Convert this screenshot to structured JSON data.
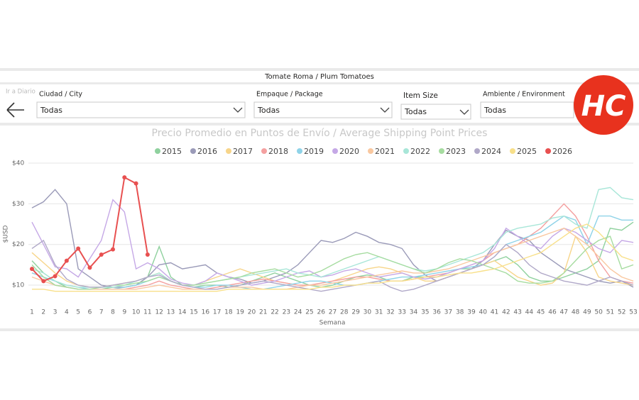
{
  "header": {
    "title": "Tomate Roma / Plum Tomatoes",
    "back_label": "Ir a Diario"
  },
  "filters": [
    {
      "label": "Ciudad / City",
      "value": "Todas"
    },
    {
      "label": "Empaque / Package",
      "value": "Todas"
    },
    {
      "label": "Item Size",
      "value": "Todas"
    },
    {
      "label": "Ambiente / Environment",
      "value": "Todas"
    }
  ],
  "logo": "HC",
  "chart_data": {
    "type": "line",
    "title": "Precio Promedio en Puntos de Envío / Average Shipping Point Prices",
    "y_label": "$USD",
    "x_label": "Semana",
    "categories": [
      1,
      2,
      3,
      4,
      5,
      6,
      7,
      8,
      9,
      10,
      11,
      12,
      13,
      14,
      15,
      16,
      17,
      18,
      19,
      20,
      21,
      22,
      23,
      24,
      25,
      26,
      27,
      28,
      29,
      30,
      31,
      32,
      33,
      34,
      35,
      36,
      37,
      38,
      39,
      40,
      41,
      42,
      43,
      44,
      45,
      46,
      47,
      48,
      49,
      50,
      51,
      52,
      53
    ],
    "ylim": [
      6,
      40
    ],
    "yticks": [
      {
        "value": 10,
        "label": "$10"
      },
      {
        "value": 20,
        "label": "$20"
      },
      {
        "value": 30,
        "label": "$30"
      },
      {
        "value": 40,
        "label": "$40"
      }
    ],
    "grid": true,
    "series": [
      {
        "name": "2015",
        "color": "#8fd19e",
        "values": [
          16,
          13,
          11,
          9.5,
          9,
          9,
          9,
          9.5,
          9.5,
          10,
          12,
          19.5,
          12,
          10,
          9.5,
          10,
          10,
          9.5,
          10,
          11,
          12,
          13,
          12,
          11,
          10,
          9.5,
          10,
          11,
          12,
          12.5,
          12,
          11,
          11,
          12,
          12,
          12,
          13,
          14,
          14,
          15,
          16,
          17,
          15,
          12,
          11,
          11,
          12,
          13,
          14,
          16,
          24,
          23.5,
          25.5
        ]
      },
      {
        "name": "2016",
        "color": "#9a9ab8",
        "values": [
          29,
          30.5,
          33.5,
          30,
          14,
          12,
          10,
          9.5,
          9.5,
          10,
          12,
          15,
          15.5,
          14,
          14.5,
          15,
          13,
          12,
          11.5,
          10.5,
          11,
          12,
          13,
          15,
          18,
          21,
          20.5,
          21.5,
          23,
          22,
          20.5,
          20,
          19,
          15,
          12.5,
          11,
          12,
          13,
          14,
          16,
          20,
          23.5,
          22,
          21,
          18,
          16,
          14,
          13,
          12,
          11,
          10.5,
          11,
          9.5
        ]
      },
      {
        "name": "2017",
        "color": "#f7d58a",
        "values": [
          18,
          15.5,
          13,
          11,
          10,
          9.5,
          9.5,
          10,
          10.5,
          11,
          12,
          13,
          11,
          10,
          10,
          11,
          12,
          13,
          14,
          13,
          12,
          11,
          10.5,
          10,
          10,
          10.5,
          11,
          12,
          13,
          14,
          14.5,
          14,
          13,
          12,
          11,
          11,
          12,
          13,
          14,
          15,
          16,
          14,
          12,
          11,
          10,
          10.5,
          13,
          22,
          18,
          12,
          11,
          10.5,
          10
        ]
      },
      {
        "name": "2018",
        "color": "#f4a0a0",
        "values": [
          13,
          12,
          10,
          9.5,
          9,
          9,
          9,
          9,
          9,
          9.5,
          10,
          11,
          10,
          9.5,
          9,
          9,
          9.5,
          10,
          10.5,
          11,
          11.5,
          11,
          10.5,
          10,
          10,
          10.5,
          11,
          11.5,
          12,
          12,
          11.5,
          11,
          11,
          11.5,
          12,
          12.5,
          13,
          14,
          15,
          16,
          18,
          19,
          20,
          22,
          24,
          27,
          30,
          27,
          22,
          16,
          12,
          11,
          10.5
        ]
      },
      {
        "name": "2019",
        "color": "#8fd3e8",
        "values": [
          13,
          12,
          11,
          10,
          9.5,
          9,
          9,
          9,
          9.5,
          10,
          11,
          12,
          11,
          10,
          9.5,
          9.5,
          10,
          10,
          9.5,
          9,
          9,
          9.5,
          10,
          10.5,
          11,
          11,
          10.5,
          10,
          10,
          10.5,
          11,
          11.5,
          12,
          12,
          12.5,
          13,
          13.5,
          14,
          14.5,
          15,
          17,
          20,
          21,
          22,
          23,
          25,
          27,
          26,
          20,
          27,
          27,
          26,
          26
        ]
      },
      {
        "name": "2020",
        "color": "#c5a8e6",
        "values": [
          25.5,
          20,
          14.5,
          14,
          12,
          16.5,
          21,
          31,
          28,
          14,
          15.5,
          14,
          11.5,
          10.5,
          10,
          11,
          13,
          12,
          11,
          10,
          10.5,
          11,
          12,
          13,
          13.5,
          12,
          12.5,
          13.5,
          14,
          13,
          12,
          12.5,
          13,
          12,
          11.5,
          12,
          13,
          14,
          15,
          16,
          19,
          24,
          22,
          20,
          19,
          22,
          24,
          23,
          21,
          19,
          18,
          21,
          20.5
        ]
      },
      {
        "name": "2021",
        "color": "#f9c8a0",
        "values": [
          12,
          11,
          10,
          9.5,
          9,
          9,
          9,
          9,
          9,
          9,
          9.5,
          10,
          9.5,
          9,
          9,
          9,
          9,
          9.5,
          9.5,
          9.5,
          9,
          9,
          9,
          9.5,
          10,
          10,
          10.5,
          11,
          11.5,
          12,
          12.5,
          13,
          13.5,
          13,
          13,
          13.5,
          14,
          15,
          16,
          17,
          18,
          19,
          20,
          21,
          22,
          23,
          24,
          22,
          20,
          17,
          14,
          12,
          11
        ]
      },
      {
        "name": "2022",
        "color": "#a8e6d8",
        "values": [
          14,
          13,
          11,
          10,
          9.5,
          9.5,
          9.5,
          9.5,
          10,
          11,
          12,
          13,
          11,
          10,
          10,
          10.5,
          11,
          11.5,
          12,
          12.5,
          13,
          13.5,
          14,
          13,
          12.5,
          12,
          13,
          14,
          15,
          16,
          17,
          16,
          15,
          14,
          13.5,
          14,
          15,
          16,
          17,
          18,
          20,
          23,
          24,
          24.5,
          25,
          26.5,
          27,
          25,
          24,
          33.5,
          34,
          31.5,
          31
        ]
      },
      {
        "name": "2023",
        "color": "#a6dca0",
        "values": [
          15,
          12,
          10,
          9.5,
          9,
          9,
          9.5,
          10,
          10,
          10.5,
          11,
          12,
          11,
          10,
          10,
          10.5,
          11,
          11.5,
          12,
          13,
          13.5,
          14,
          13,
          12,
          12.5,
          13.5,
          15,
          16.5,
          17.5,
          18,
          17,
          16,
          15,
          14,
          13,
          14,
          15.5,
          16.5,
          16,
          15,
          14,
          13,
          11,
          10.5,
          10.5,
          11,
          13,
          16,
          19,
          21,
          22,
          14,
          15
        ]
      },
      {
        "name": "2024",
        "color": "#b0a8c8",
        "values": [
          19,
          21,
          15,
          11.5,
          10,
          9.5,
          9.5,
          10,
          10.5,
          11,
          12,
          12.5,
          11,
          10,
          9.5,
          9,
          9,
          9.5,
          10,
          10.5,
          11,
          10.5,
          10,
          9.5,
          9,
          8.5,
          9,
          9.5,
          10,
          10.5,
          11,
          9.5,
          8.5,
          9,
          10,
          11,
          12,
          13,
          14,
          15,
          17,
          20,
          18,
          15,
          13,
          12,
          11,
          10.5,
          10,
          11,
          12,
          11,
          10
        ]
      },
      {
        "name": "2025",
        "color": "#f8e08a",
        "values": [
          9,
          9,
          8.5,
          8.5,
          8.5,
          8.5,
          8.5,
          8.5,
          8.5,
          8.5,
          8.5,
          8.5,
          8.5,
          8.5,
          8.5,
          8.5,
          8.5,
          9,
          9,
          9,
          9,
          9,
          9,
          9,
          9,
          9.5,
          9.5,
          10,
          10,
          10.5,
          10.5,
          11,
          11,
          11.5,
          12,
          12,
          12.5,
          13,
          13,
          13.5,
          14,
          15,
          16,
          17,
          18,
          20,
          22,
          24,
          25,
          23,
          20,
          17,
          16
        ]
      },
      {
        "name": "2026",
        "color": "#e85050",
        "values": [
          14,
          11,
          12.2,
          16,
          19,
          14.3,
          17.5,
          18.8,
          36.5,
          35,
          17.5,
          null,
          null,
          null,
          null,
          null,
          null,
          null,
          null,
          null,
          null,
          null,
          null,
          null,
          null,
          null,
          null,
          null,
          null,
          null,
          null,
          null,
          null,
          null,
          null,
          null,
          null,
          null,
          null,
          null,
          null,
          null,
          null,
          null,
          null,
          null,
          null,
          null,
          null,
          null,
          null,
          null,
          null
        ]
      }
    ]
  }
}
